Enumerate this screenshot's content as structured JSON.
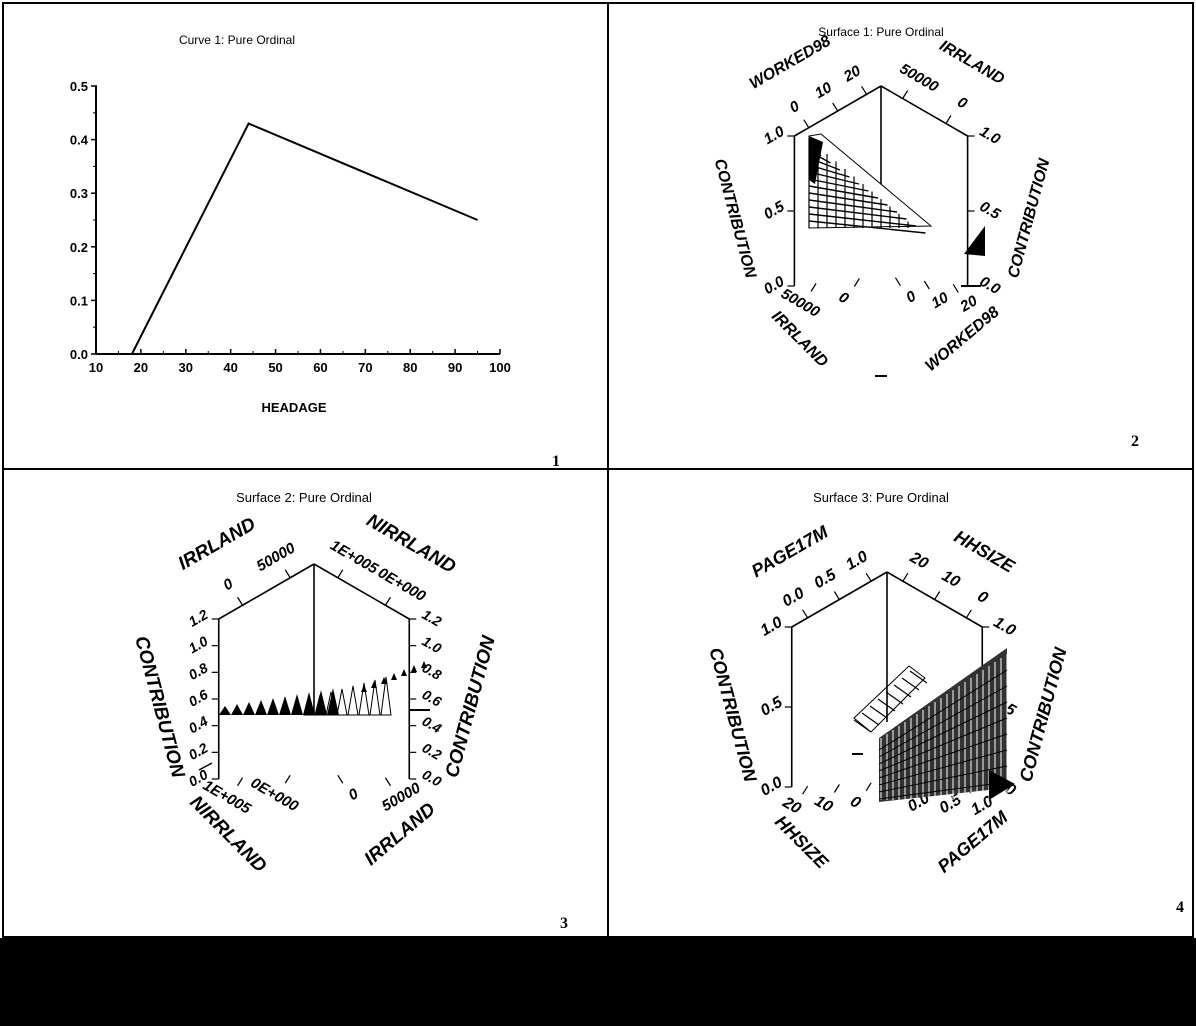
{
  "chart_data": [
    {
      "type": "line",
      "title": "Curve 1: Pure Ordinal",
      "xlabel": "HEADAGE",
      "ylabel": "",
      "xlim": [
        10,
        100
      ],
      "ylim": [
        0,
        0.5
      ],
      "xticks": [
        "10",
        "20",
        "30",
        "40",
        "50",
        "60",
        "70",
        "80",
        "90",
        "100"
      ],
      "yticks": [
        "0.0",
        "0.1",
        "0.2",
        "0.3",
        "0.4",
        "0.5"
      ],
      "x": [
        18,
        44,
        95
      ],
      "y": [
        0.0,
        0.43,
        0.25
      ],
      "panel_number": "1"
    },
    {
      "type": "surface",
      "title": "Surface 1: Pure Ordinal",
      "axes": {
        "left_back": {
          "label": "WORKED98",
          "ticks": [
            "0",
            "10",
            "20"
          ]
        },
        "right_back": {
          "label": "IRRLAND",
          "ticks": [
            "50000",
            "0"
          ]
        },
        "left_vertical": {
          "label": "CONTRIBUTION",
          "ticks": [
            "1.0",
            "0.5",
            "0.0"
          ]
        },
        "right_vertical": {
          "label": "CONTRIBUTION",
          "ticks": [
            "1.0",
            "0.5",
            "0.0"
          ]
        },
        "left_front": {
          "label": "IRRLAND",
          "ticks": [
            "50000",
            "0"
          ]
        },
        "right_front": {
          "label": "WORKED98",
          "ticks": [
            "0",
            "10",
            "20"
          ]
        }
      },
      "panel_number": "2"
    },
    {
      "type": "surface",
      "title": "Surface 2: Pure Ordinal",
      "axes": {
        "left_back": {
          "label": "IRRLAND",
          "ticks": [
            "0",
            "50000"
          ]
        },
        "right_back": {
          "label": "NIRRLAND",
          "ticks": [
            "1E+005",
            "0E+000"
          ]
        },
        "left_vertical": {
          "label": "CONTRIBUTION",
          "ticks": [
            "1.2",
            "1.0",
            "0.8",
            "0.6",
            "0.4",
            "0.2",
            "0.0"
          ]
        },
        "right_vertical": {
          "label": "CONTRIBUTION",
          "ticks": [
            "1.2",
            "1.0",
            "0.8",
            "0.6",
            "0.4",
            "0.2",
            "0.0"
          ]
        },
        "left_front": {
          "label": "NIRRLAND",
          "ticks": [
            "1E+005",
            "0E+000"
          ]
        },
        "right_front": {
          "label": "IRRLAND",
          "ticks": [
            "0",
            "50000"
          ]
        }
      },
      "panel_number": "3"
    },
    {
      "type": "surface",
      "title": "Surface 3: Pure Ordinal",
      "axes": {
        "left_back": {
          "label": "PAGE17M",
          "ticks": [
            "0.0",
            "0.5",
            "1.0"
          ]
        },
        "right_back": {
          "label": "HHSIZE",
          "ticks": [
            "20",
            "10",
            "0"
          ]
        },
        "left_vertical": {
          "label": "CONTRIBUTION",
          "ticks": [
            "1.0",
            "0.5",
            "0.0"
          ]
        },
        "right_vertical": {
          "label": "CONTRIBUTION",
          "ticks": [
            "1.0",
            "0.5",
            "0.0"
          ]
        },
        "left_front": {
          "label": "HHSIZE",
          "ticks": [
            "20",
            "10",
            "0"
          ]
        },
        "right_front": {
          "label": "PAGE17M",
          "ticks": [
            "0.0",
            "0.5",
            "1.0"
          ]
        }
      },
      "panel_number": "4"
    }
  ],
  "colors": {
    "ink": "#000000",
    "background": "#ffffff",
    "footer": "#000000"
  }
}
